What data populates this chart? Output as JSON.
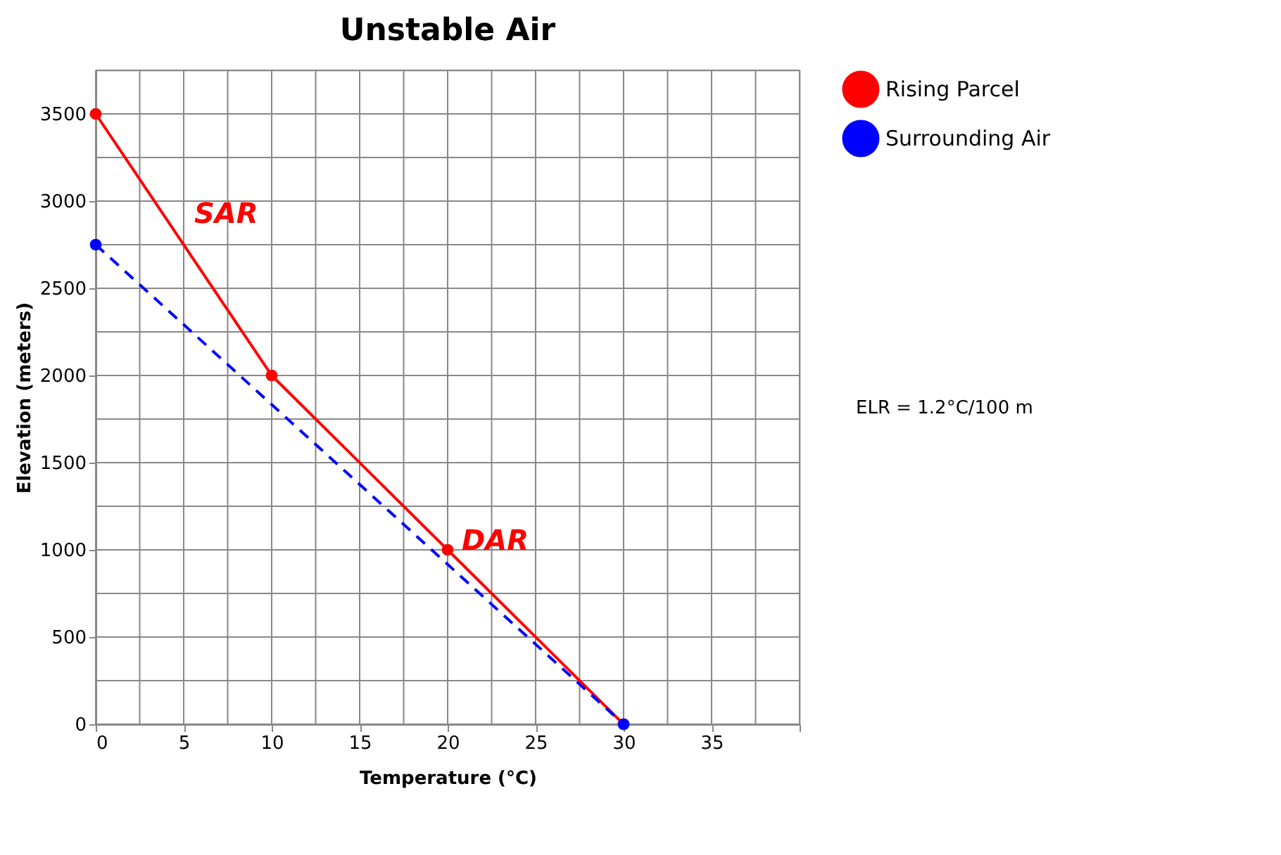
{
  "chart_data": {
    "type": "line",
    "title": "Unstable Air",
    "xlabel": "Temperature (°C)",
    "ylabel": "Elevation (meters)",
    "xlim": [
      0,
      40
    ],
    "ylim": [
      0,
      3750
    ],
    "xticks": [
      0,
      {
        "value": 2.5,
        "label": null
      },
      5,
      {
        "value": 7.5,
        "label": null
      },
      10,
      {
        "value": 12.5,
        "label": null
      },
      15,
      {
        "value": 17.5,
        "label": null
      },
      20,
      {
        "value": 22.5,
        "label": null
      },
      25,
      {
        "value": 27.5,
        "label": null
      },
      30,
      {
        "value": 32.5,
        "label": null
      },
      35,
      {
        "value": 37.5,
        "label": null
      },
      {
        "value": 40,
        "label": null
      }
    ],
    "yticks": [
      0,
      {
        "value": 250,
        "label": null
      },
      500,
      {
        "value": 750,
        "label": null
      },
      1000,
      {
        "value": 1250,
        "label": null
      },
      1500,
      {
        "value": 1750,
        "label": null
      },
      2000,
      {
        "value": 2250,
        "label": null
      },
      2500,
      {
        "value": 2750,
        "label": null
      },
      3000,
      {
        "value": 3250,
        "label": null
      },
      3500,
      {
        "value": 3750,
        "label": null
      }
    ],
    "grid": true,
    "legend": "right",
    "marker": "circle",
    "series": [
      {
        "name": "Rising Parcel",
        "color": "#ff0000",
        "line_style": "solid",
        "x": [
          0,
          10,
          20,
          30
        ],
        "values": [
          3500,
          2000,
          1000,
          0
        ]
      },
      {
        "name": "Surrounding Air",
        "color": "#0000ff",
        "line_style": "dashed",
        "x": [
          0,
          30
        ],
        "values": [
          2750,
          0
        ]
      }
    ],
    "annotations": [
      "SAR",
      "DAR",
      "ELR = 1.2°C/100 m"
    ]
  }
}
